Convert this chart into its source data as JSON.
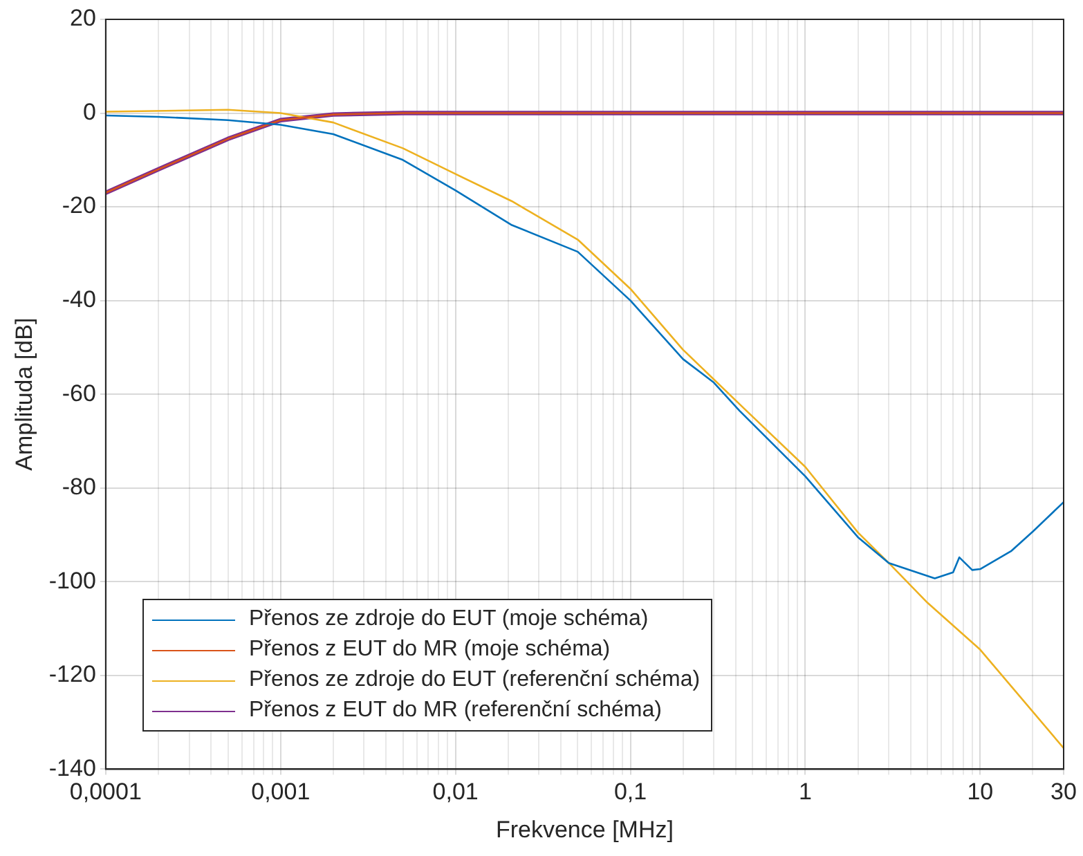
{
  "chart_data": {
    "type": "line",
    "xlabel": "Frekvence [MHz]",
    "ylabel": "Amplituda [dB]",
    "log": "x",
    "grid": true,
    "legend": "bottom left",
    "marker": "none",
    "line_style": "solid",
    "xlim": [
      0.0001,
      30
    ],
    "ylim": [
      -140,
      20
    ],
    "xticks": [
      {
        "value": 0.0001,
        "label": "0,0001"
      },
      {
        "value": 0.0002,
        "label": null
      },
      {
        "value": 0.0003,
        "label": null
      },
      {
        "value": 0.0004,
        "label": null
      },
      {
        "value": 0.0005,
        "label": null
      },
      {
        "value": 0.0006,
        "label": null
      },
      {
        "value": 0.0007,
        "label": null
      },
      {
        "value": 0.0008,
        "label": null
      },
      {
        "value": 0.0009,
        "label": null
      },
      {
        "value": 0.001,
        "label": "0,001"
      },
      {
        "value": 0.002,
        "label": null
      },
      {
        "value": 0.003,
        "label": null
      },
      {
        "value": 0.004,
        "label": null
      },
      {
        "value": 0.005,
        "label": null
      },
      {
        "value": 0.006,
        "label": null
      },
      {
        "value": 0.007,
        "label": null
      },
      {
        "value": 0.008,
        "label": null
      },
      {
        "value": 0.009,
        "label": null
      },
      {
        "value": 0.01,
        "label": "0,01"
      },
      {
        "value": 0.02,
        "label": null
      },
      {
        "value": 0.03,
        "label": null
      },
      {
        "value": 0.04,
        "label": null
      },
      {
        "value": 0.05,
        "label": null
      },
      {
        "value": 0.06,
        "label": null
      },
      {
        "value": 0.07,
        "label": null
      },
      {
        "value": 0.08,
        "label": null
      },
      {
        "value": 0.09,
        "label": null
      },
      {
        "value": 0.1,
        "label": "0,1"
      },
      {
        "value": 0.2,
        "label": null
      },
      {
        "value": 0.3,
        "label": null
      },
      {
        "value": 0.4,
        "label": null
      },
      {
        "value": 0.5,
        "label": null
      },
      {
        "value": 0.6,
        "label": null
      },
      {
        "value": 0.7,
        "label": null
      },
      {
        "value": 0.8,
        "label": null
      },
      {
        "value": 0.9,
        "label": null
      },
      1,
      {
        "value": 2,
        "label": null
      },
      {
        "value": 3,
        "label": null
      },
      {
        "value": 4,
        "label": null
      },
      {
        "value": 5,
        "label": null
      },
      {
        "value": 6,
        "label": null
      },
      {
        "value": 7,
        "label": null
      },
      {
        "value": 8,
        "label": null
      },
      {
        "value": 9,
        "label": null
      },
      10,
      {
        "value": 20,
        "label": null
      },
      30
    ],
    "yticks": [
      -140,
      -120,
      -100,
      -80,
      -60,
      -40,
      -20,
      0,
      20
    ],
    "series": [
      {
        "name": "Přenos ze zdroje do EUT (moje schéma)",
        "color": "#0072bd",
        "x": [
          0.0001,
          0.0002,
          0.0005,
          0.001,
          0.002,
          0.005,
          0.01,
          0.021,
          0.05,
          0.1,
          0.2,
          0.3,
          0.42,
          1,
          2,
          3,
          5.5,
          7,
          7.6,
          9,
          10,
          15,
          20,
          30
        ],
        "values": [
          -0.5,
          -0.8,
          -1.5,
          -2.5,
          -4.5,
          -10,
          -16.5,
          -23.9,
          -29.6,
          -40,
          -52.5,
          -57.5,
          -63.5,
          -77.5,
          -90.5,
          -96,
          -99.3,
          -98,
          -94.8,
          -97.5,
          -97.3,
          -93.5,
          -89.3,
          -83
        ]
      },
      {
        "name": "Přenos z EUT do MR (moje schéma)",
        "color": "#d95319",
        "x": [
          0.0001,
          0.0002,
          0.0005,
          0.001,
          0.002,
          0.005,
          0.01,
          0.1,
          1,
          10,
          30
        ],
        "values": [
          -17,
          -12,
          -5.5,
          -1.5,
          -0.3,
          0,
          0,
          0,
          0,
          0,
          0
        ]
      },
      {
        "name": "Přenos ze zdroje do EUT (referenční schéma)",
        "color": "#edb120",
        "x": [
          0.0001,
          0.0005,
          0.001,
          0.002,
          0.005,
          0.01,
          0.021,
          0.05,
          0.1,
          0.2,
          0.46,
          1,
          2,
          3,
          5,
          10,
          30
        ],
        "values": [
          0.3,
          0.7,
          0,
          -2,
          -7.5,
          -13,
          -18.8,
          -27,
          -37.5,
          -50.5,
          -63.5,
          -75.5,
          -89.5,
          -96,
          -104.5,
          -114.5,
          -135.5
        ]
      },
      {
        "name": "Přenos z EUT do MR (referenční schéma)",
        "color": "#7e2f8e",
        "x": [
          0.0001,
          0.0002,
          0.0005,
          0.001,
          0.002,
          0.005,
          0.01,
          0.1,
          1,
          10,
          30
        ],
        "values": [
          -17,
          -12,
          -5.5,
          -1.5,
          -0.3,
          0,
          0,
          0,
          0,
          0,
          0
        ]
      }
    ]
  }
}
